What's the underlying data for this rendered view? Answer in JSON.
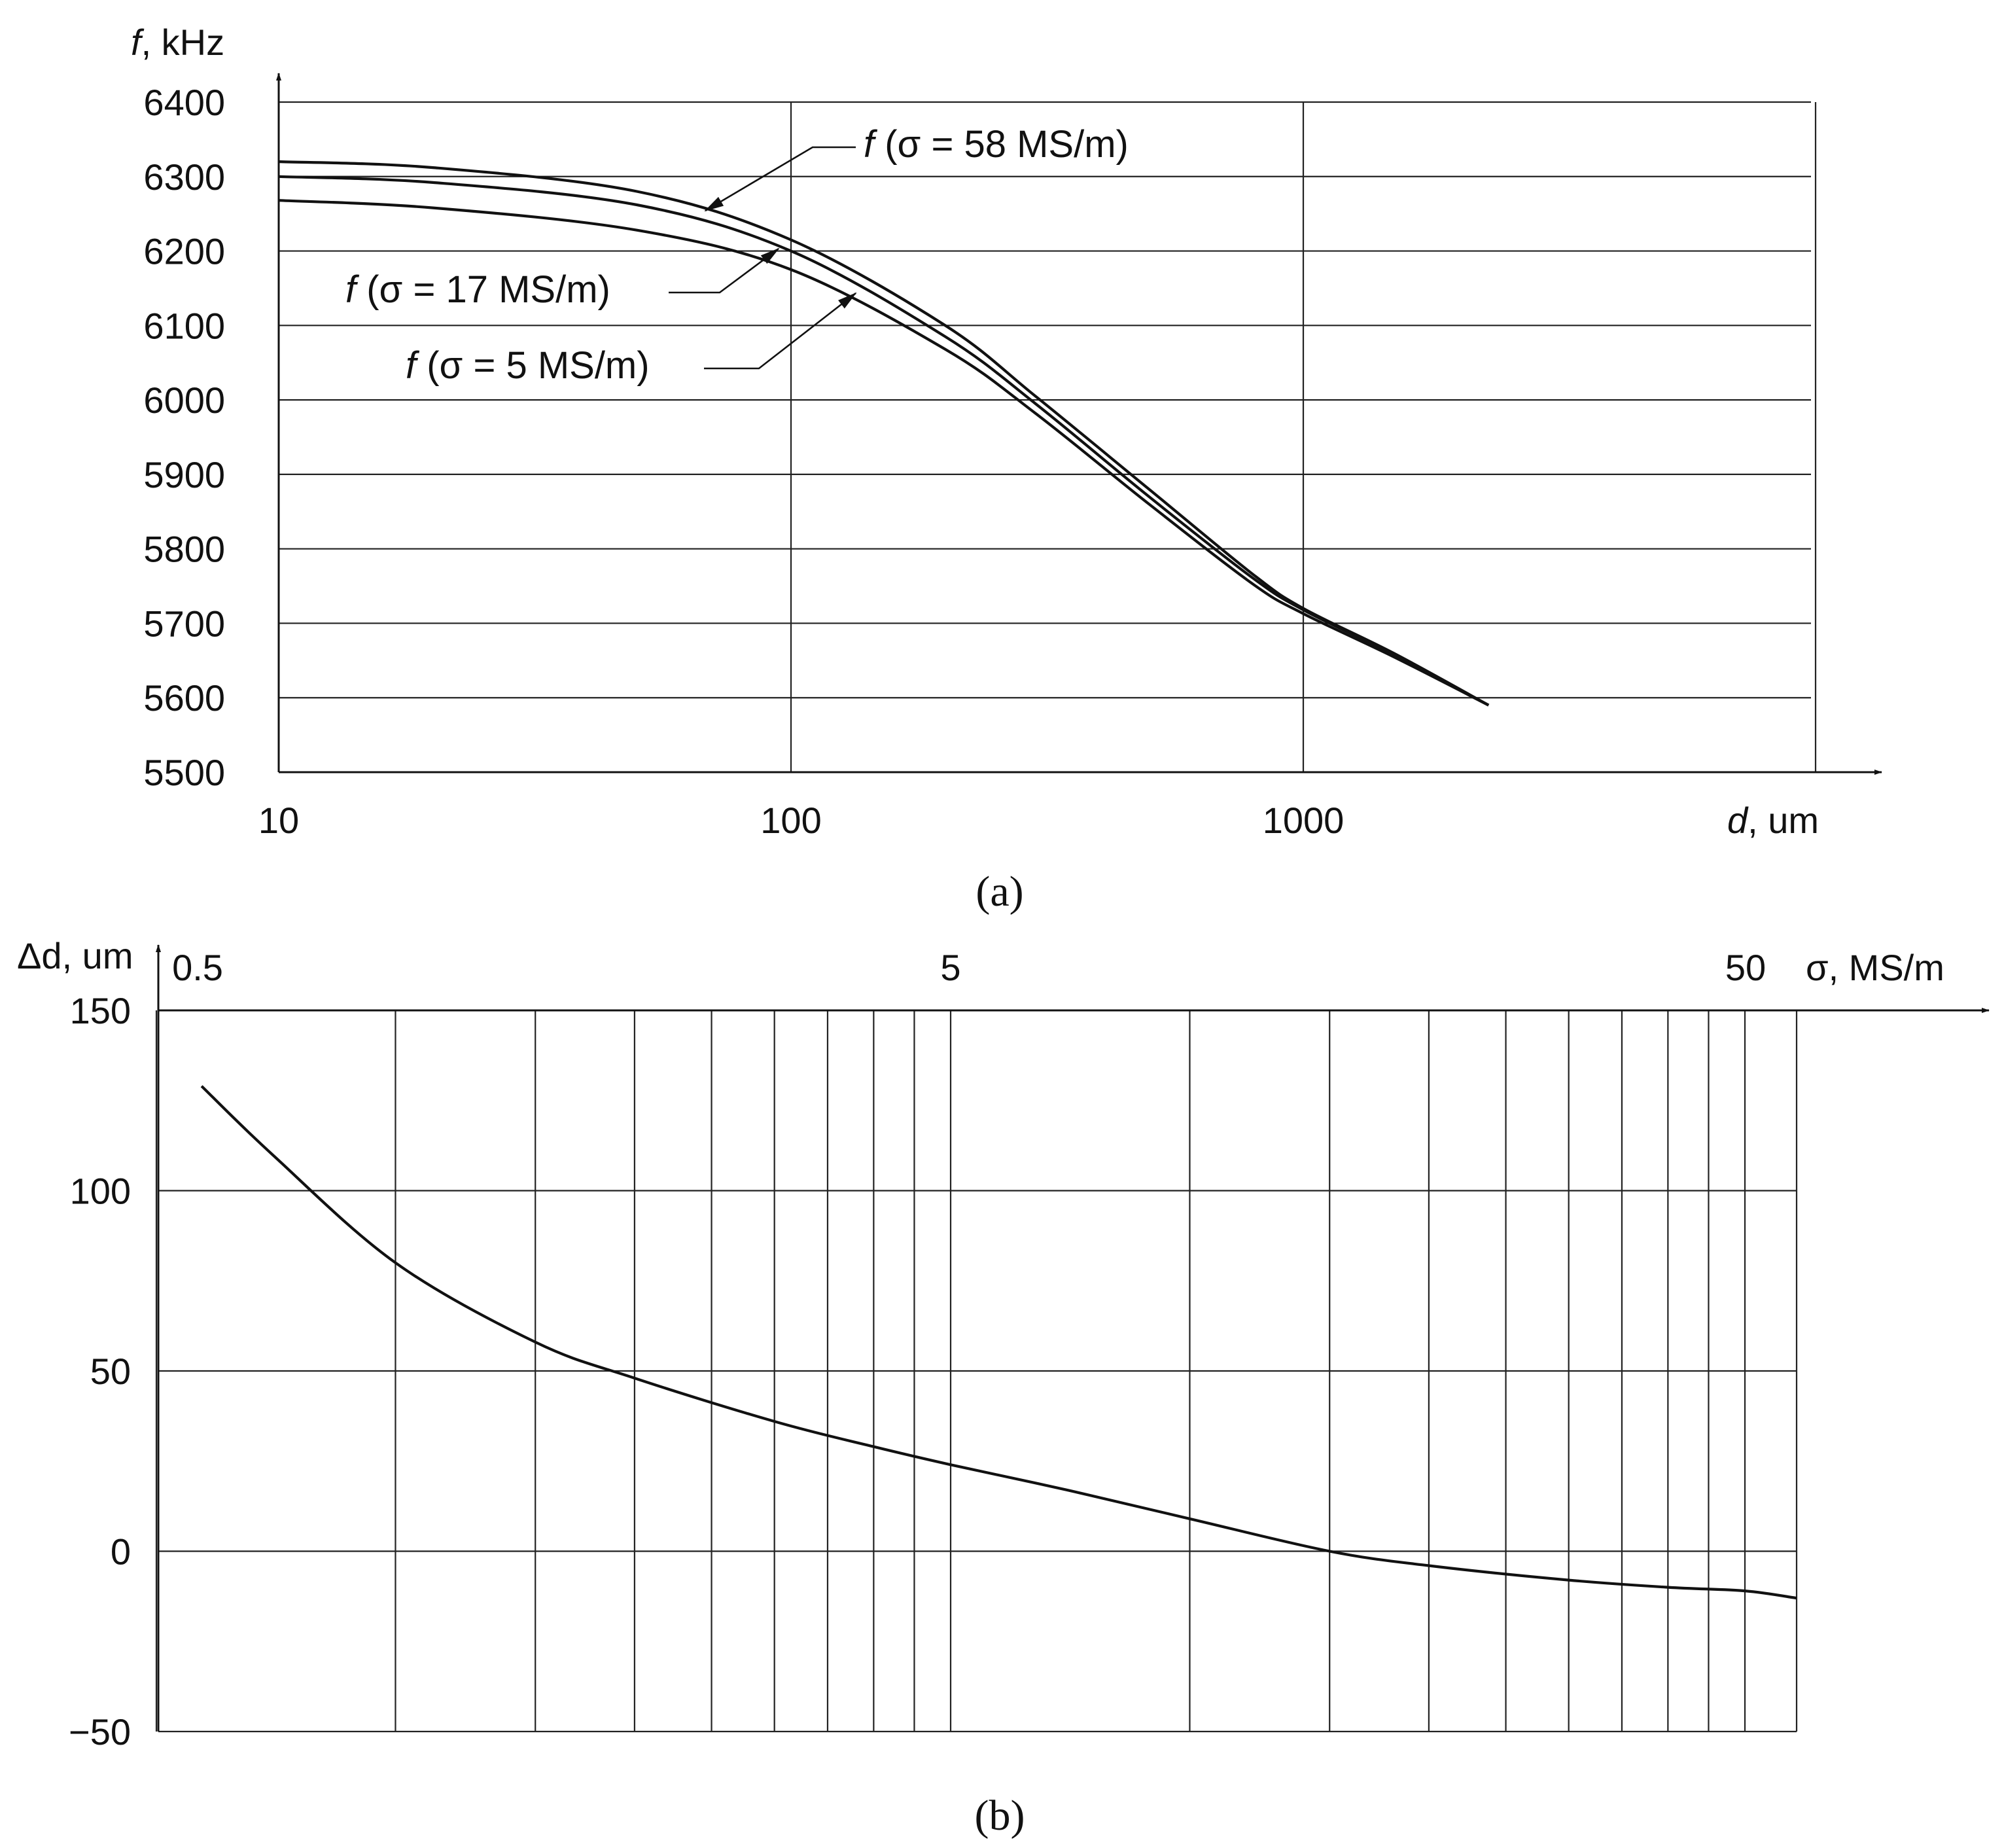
{
  "chart_data": [
    {
      "panel": "(a)",
      "type": "line",
      "x_scale": "log",
      "xlabel_var": "d",
      "xlabel_unit": ", um",
      "ylabel_var": "f",
      "ylabel_unit": ", kHz",
      "xlim": [
        10,
        10000
      ],
      "ylim": [
        5500,
        6400
      ],
      "x_ticks": [
        "10",
        "100",
        "1000"
      ],
      "y_ticks": [
        "5500",
        "5600",
        "5700",
        "5800",
        "5900",
        "6000",
        "6100",
        "6200",
        "6300",
        "6400"
      ],
      "grid": true,
      "series": [
        {
          "name": "f (σ = 58 MS/m)",
          "label_var": "f",
          "label_rest": " (σ = 58 MS/m)",
          "x": [
            10,
            20,
            50,
            100,
            200,
            300,
            500,
            800,
            1000,
            1500,
            2300
          ],
          "y": [
            6320,
            6312,
            6280,
            6215,
            6100,
            6005,
            5880,
            5765,
            5720,
            5660,
            5590
          ]
        },
        {
          "name": "f (σ = 17 MS/m)",
          "label_var": "f",
          "label_rest": " (σ = 17 MS/m)",
          "x": [
            10,
            20,
            50,
            100,
            200,
            300,
            500,
            800,
            1000,
            1500,
            2300
          ],
          "y": [
            6300,
            6292,
            6262,
            6200,
            6085,
            5995,
            5870,
            5760,
            5718,
            5658,
            5590
          ]
        },
        {
          "name": "f (σ = 5 MS/m)",
          "label_var": "f",
          "label_rest": " (σ = 5 MS/m)",
          "x": [
            10,
            20,
            50,
            100,
            200,
            300,
            500,
            800,
            1000,
            1500,
            2300
          ],
          "y": [
            6268,
            6258,
            6228,
            6175,
            6068,
            5982,
            5860,
            5752,
            5713,
            5655,
            5590
          ]
        }
      ]
    },
    {
      "panel": "(b)",
      "type": "line",
      "x_scale": "log",
      "xlabel_var": "σ",
      "xlabel_unit": ", MS/m",
      "ylabel_var": "Δd",
      "ylabel_unit": ", um",
      "xlim": [
        0.5,
        60
      ],
      "ylim": [
        -50,
        150
      ],
      "x_ticks": [
        "0.5",
        "5",
        "50"
      ],
      "y_ticks": [
        "150",
        "100",
        "50",
        "0",
        "−50"
      ],
      "grid": true,
      "series": [
        {
          "x": [
            0.57,
            0.7,
            1,
            1.5,
            2,
            3,
            4,
            5,
            7,
            10,
            15,
            20,
            30,
            40,
            50,
            60
          ],
          "y": [
            129,
            110,
            80,
            58,
            48,
            36,
            29,
            24,
            17,
            9,
            0,
            -4,
            -8,
            -10,
            -11,
            -13
          ]
        }
      ]
    }
  ]
}
